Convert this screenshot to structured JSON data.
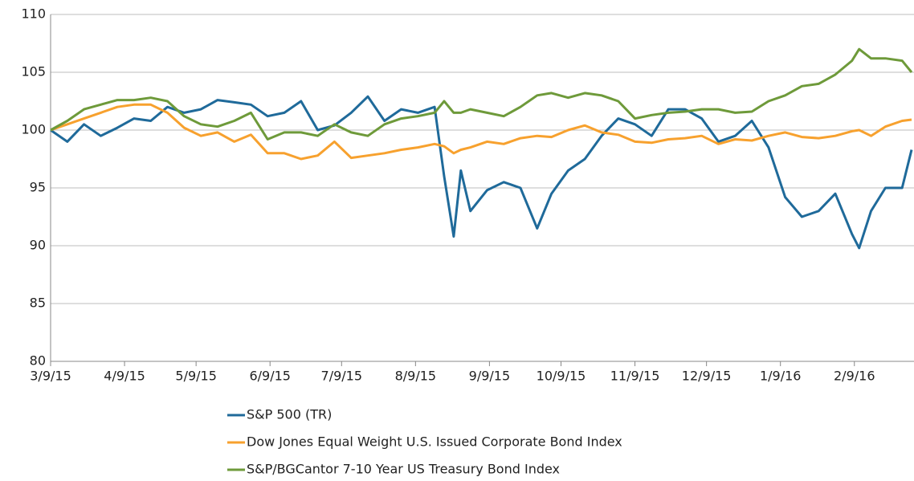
{
  "chart_data": {
    "type": "line",
    "x": [
      "2015-03-09",
      "2015-03-16",
      "2015-03-23",
      "2015-03-30",
      "2015-04-06",
      "2015-04-13",
      "2015-04-20",
      "2015-04-27",
      "2015-05-04",
      "2015-05-11",
      "2015-05-18",
      "2015-05-25",
      "2015-06-01",
      "2015-06-08",
      "2015-06-15",
      "2015-06-22",
      "2015-06-29",
      "2015-07-06",
      "2015-07-13",
      "2015-07-20",
      "2015-07-27",
      "2015-08-03",
      "2015-08-10",
      "2015-08-17",
      "2015-08-21",
      "2015-08-25",
      "2015-08-28",
      "2015-09-01",
      "2015-09-08",
      "2015-09-15",
      "2015-09-22",
      "2015-09-29",
      "2015-10-05",
      "2015-10-12",
      "2015-10-19",
      "2015-10-26",
      "2015-11-02",
      "2015-11-09",
      "2015-11-16",
      "2015-11-23",
      "2015-11-30",
      "2015-12-07",
      "2015-12-14",
      "2015-12-21",
      "2015-12-28",
      "2016-01-04",
      "2016-01-11",
      "2016-01-18",
      "2016-01-25",
      "2016-02-01",
      "2016-02-08",
      "2016-02-11",
      "2016-02-16",
      "2016-02-22",
      "2016-02-29",
      "2016-03-04"
    ],
    "series": [
      {
        "name": "S&P 500 (TR)",
        "color": "#1f6a9a",
        "values": [
          100,
          99,
          100.5,
          99.5,
          100.2,
          101,
          100.8,
          102,
          101.5,
          101.8,
          102.6,
          102.4,
          102.2,
          101.2,
          101.5,
          102.5,
          100,
          100.4,
          101.5,
          102.9,
          100.8,
          101.8,
          101.5,
          102,
          96,
          90.8,
          96.5,
          93,
          94.8,
          95.5,
          95,
          91.5,
          94.5,
          96.5,
          97.5,
          99.5,
          101,
          100.5,
          99.5,
          101.8,
          101.8,
          101,
          99,
          99.5,
          100.8,
          98.5,
          94.2,
          92.5,
          93,
          94.5,
          91,
          89.8,
          93,
          95,
          95,
          98.3
        ]
      },
      {
        "name": "Dow Jones Equal Weight U.S. Issued Corporate Bond Index",
        "color": "#f7a12e",
        "values": [
          100,
          100.5,
          101,
          101.5,
          102,
          102.2,
          102.2,
          101.5,
          100.2,
          99.5,
          99.8,
          99,
          99.6,
          98,
          98,
          97.5,
          97.8,
          99,
          97.6,
          97.8,
          98,
          98.3,
          98.5,
          98.8,
          98.6,
          98,
          98.3,
          98.5,
          99,
          98.8,
          99.3,
          99.5,
          99.4,
          100,
          100.4,
          99.8,
          99.6,
          99,
          98.9,
          99.2,
          99.3,
          99.5,
          98.8,
          99.2,
          99.1,
          99.5,
          99.8,
          99.4,
          99.3,
          99.5,
          99.9,
          100,
          99.5,
          100.3,
          100.8,
          100.9
        ]
      },
      {
        "name": "S&P/BGCantor 7-10 Year US Treasury Bond Index",
        "color": "#6e9a3a",
        "values": [
          100,
          100.8,
          101.8,
          102.2,
          102.6,
          102.6,
          102.8,
          102.5,
          101.2,
          100.5,
          100.3,
          100.8,
          101.5,
          99.2,
          99.8,
          99.8,
          99.5,
          100.5,
          99.8,
          99.5,
          100.5,
          101,
          101.2,
          101.5,
          102.5,
          101.5,
          101.5,
          101.8,
          101.5,
          101.2,
          102,
          103,
          103.2,
          102.8,
          103.2,
          103,
          102.5,
          101,
          101.3,
          101.5,
          101.6,
          101.8,
          101.8,
          101.5,
          101.6,
          102.5,
          103,
          103.8,
          104,
          104.8,
          106,
          107,
          106.2,
          106.2,
          106,
          105
        ]
      }
    ],
    "xlim": [
      "2015-03-09",
      "2016-03-05"
    ],
    "xticks": [
      {
        "value": "2015-03-09",
        "label": "3/9/15"
      },
      {
        "value": "2015-04-09",
        "label": "4/9/15"
      },
      {
        "value": "2015-05-09",
        "label": "5/9/15"
      },
      {
        "value": "2015-06-09",
        "label": "6/9/15"
      },
      {
        "value": "2015-07-09",
        "label": "7/9/15"
      },
      {
        "value": "2015-08-09",
        "label": "8/9/15"
      },
      {
        "value": "2015-09-09",
        "label": "9/9/15"
      },
      {
        "value": "2015-10-09",
        "label": "10/9/15"
      },
      {
        "value": "2015-11-09",
        "label": "11/9/15"
      },
      {
        "value": "2015-12-09",
        "label": "12/9/15"
      },
      {
        "value": "2016-01-09",
        "label": "1/9/16"
      },
      {
        "value": "2016-02-09",
        "label": "2/9/16"
      }
    ],
    "ylim": [
      80,
      110
    ],
    "yticks": [
      80,
      85,
      90,
      95,
      100,
      105,
      110
    ],
    "grid": true,
    "legend": "bottom"
  }
}
